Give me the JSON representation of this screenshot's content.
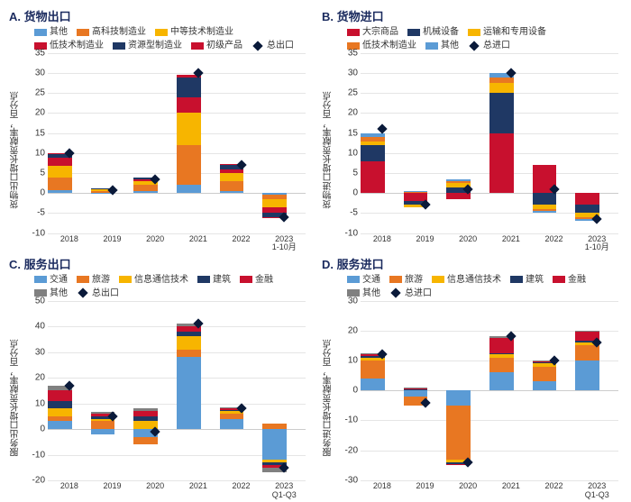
{
  "palette": {
    "orange": "#e87722",
    "yellow": "#f7b500",
    "red": "#c8102e",
    "navy": "#1f3864",
    "blue": "#5b9bd5",
    "darknavy": "#0a1a3a",
    "grey": "#808080",
    "gridline": "#e5e5e5"
  },
  "panels": {
    "A": {
      "title": "A. 货物出口",
      "ylabel": "货物出口增长贡献率，百分点",
      "ylim": [
        -10,
        35
      ],
      "ytick_step": 5,
      "legend": [
        {
          "label": "其他",
          "color": "#5b9bd5"
        },
        {
          "label": "高科技制造业",
          "color": "#e87722"
        },
        {
          "label": "中等技术制造业",
          "color": "#f7b500"
        },
        {
          "label": "低技术制造业",
          "color": "#c8102e"
        },
        {
          "label": "资源型制造业",
          "color": "#1f3864"
        },
        {
          "label": "初级产品",
          "color": "#c8102e"
        },
        {
          "label": "总出口",
          "shape": "diamond",
          "color": "#0a1a3a"
        }
      ],
      "categories": [
        "2018",
        "2019",
        "2020",
        "2021",
        "2022",
        "2023\n1-10月"
      ],
      "series_colors": [
        "#5b9bd5",
        "#e87722",
        "#f7b500",
        "#c8102e",
        "#1f3864",
        "#c8102e"
      ],
      "stacks": [
        [
          0.8,
          3.0,
          3.0,
          2.0,
          1.0,
          0.2
        ],
        [
          -0.3,
          0.5,
          0.4,
          0.2,
          0.1,
          0.0
        ],
        [
          0.5,
          1.5,
          1.0,
          0.5,
          0.3,
          0.0
        ],
        [
          2.0,
          10.0,
          8.0,
          4.0,
          5.0,
          0.5
        ],
        [
          0.5,
          2.5,
          2.0,
          1.0,
          1.0,
          0.2
        ],
        [
          -0.5,
          -1.0,
          -2.0,
          -1.5,
          -1.0,
          -0.3
        ]
      ],
      "marker": [
        10,
        0.8,
        3.5,
        30,
        7,
        -6
      ]
    },
    "B": {
      "title": "B. 货物进口",
      "ylabel": "货物进口增长贡献率，百分点",
      "ylim": [
        -10,
        35
      ],
      "ytick_step": 5,
      "legend": [
        {
          "label": "大宗商品",
          "color": "#c8102e"
        },
        {
          "label": "机械设备",
          "color": "#1f3864"
        },
        {
          "label": "运输和专用设备",
          "color": "#f7b500"
        },
        {
          "label": "低技术制造业",
          "color": "#e87722"
        },
        {
          "label": "其他",
          "color": "#5b9bd5"
        },
        {
          "label": "总进口",
          "shape": "diamond",
          "color": "#0a1a3a"
        }
      ],
      "categories": [
        "2018",
        "2019",
        "2020",
        "2021",
        "2022",
        "2023\n1-10月"
      ],
      "series_colors": [
        "#c8102e",
        "#1f3864",
        "#f7b500",
        "#e87722",
        "#5b9bd5"
      ],
      "stacks": [
        [
          8.0,
          4.0,
          1.0,
          1.0,
          1.0
        ],
        [
          -2.0,
          -1.0,
          -0.5,
          0.3,
          0.2
        ],
        [
          -1.5,
          1.5,
          1.0,
          0.5,
          0.5
        ],
        [
          15.0,
          10.0,
          2.5,
          1.5,
          1.0
        ],
        [
          7.0,
          -3.0,
          -1.0,
          -0.5,
          -0.5
        ],
        [
          -3.0,
          -2.0,
          -1.0,
          -0.5,
          -0.5
        ]
      ],
      "marker": [
        16,
        -3,
        1,
        30,
        1,
        -6.5
      ]
    },
    "C": {
      "title": "C. 服务出口",
      "ylabel": "服务出口增长贡献率，百分点",
      "ylim": [
        -20,
        50
      ],
      "ytick_step": 10,
      "legend": [
        {
          "label": "交通",
          "color": "#5b9bd5"
        },
        {
          "label": "旅游",
          "color": "#e87722"
        },
        {
          "label": "信息通信技术",
          "color": "#f7b500"
        },
        {
          "label": "建筑",
          "color": "#1f3864"
        },
        {
          "label": "金融",
          "color": "#c8102e"
        },
        {
          "label": "其他",
          "color": "#808080"
        },
        {
          "label": "总出口",
          "shape": "diamond",
          "color": "#0a1a3a"
        }
      ],
      "categories": [
        "2018",
        "2019",
        "2020",
        "2021",
        "2022",
        "2023\nQ1-Q3"
      ],
      "series_colors": [
        "#5b9bd5",
        "#e87722",
        "#f7b500",
        "#1f3864",
        "#c8102e",
        "#808080"
      ],
      "stacks": [
        [
          3.0,
          2.0,
          3.0,
          3.0,
          4.0,
          2.0
        ],
        [
          -2.0,
          3.0,
          1.0,
          1.0,
          1.0,
          0.5
        ],
        [
          -3.0,
          -3.0,
          3.0,
          2.0,
          2.0,
          1.0
        ],
        [
          28.0,
          3.0,
          5.0,
          2.0,
          2.0,
          1.0
        ],
        [
          4.0,
          2.0,
          1.0,
          0.5,
          0.5,
          0.3
        ],
        [
          -12.0,
          2.0,
          -1.0,
          -1.0,
          -1.0,
          -2.0
        ]
      ],
      "marker": [
        17,
        5,
        -1,
        41,
        8,
        -15
      ]
    },
    "D": {
      "title": "D. 服务进口",
      "ylabel": "服务进口增长贡献率，百分点",
      "ylim": [
        -30,
        30
      ],
      "ytick_step": 10,
      "legend": [
        {
          "label": "交通",
          "color": "#5b9bd5"
        },
        {
          "label": "旅游",
          "color": "#e87722"
        },
        {
          "label": "信息通信技术",
          "color": "#f7b500"
        },
        {
          "label": "建筑",
          "color": "#1f3864"
        },
        {
          "label": "金融",
          "color": "#c8102e"
        },
        {
          "label": "其他",
          "color": "#808080"
        },
        {
          "label": "总进口",
          "shape": "diamond",
          "color": "#0a1a3a"
        }
      ],
      "categories": [
        "2018",
        "2019",
        "2020",
        "2021",
        "2022",
        "2023\nQ1-Q3"
      ],
      "series_colors": [
        "#5b9bd5",
        "#e87722",
        "#f7b500",
        "#1f3864",
        "#c8102e",
        "#808080"
      ],
      "stacks": [
        [
          4.0,
          6.0,
          1.0,
          0.5,
          0.5,
          0.5
        ],
        [
          -2.0,
          -3.0,
          0.3,
          0.2,
          0.3,
          0.2
        ],
        [
          -5.0,
          -18.0,
          -1.0,
          -0.5,
          -0.5,
          0.0
        ],
        [
          6.0,
          5.0,
          1.0,
          0.5,
          5.0,
          0.5
        ],
        [
          3.0,
          5.0,
          1.0,
          0.5,
          0.3,
          0.2
        ],
        [
          10.0,
          5.0,
          1.0,
          0.5,
          3.0,
          0.5
        ]
      ],
      "marker": [
        12,
        -4,
        -24,
        18,
        10,
        16
      ]
    }
  }
}
